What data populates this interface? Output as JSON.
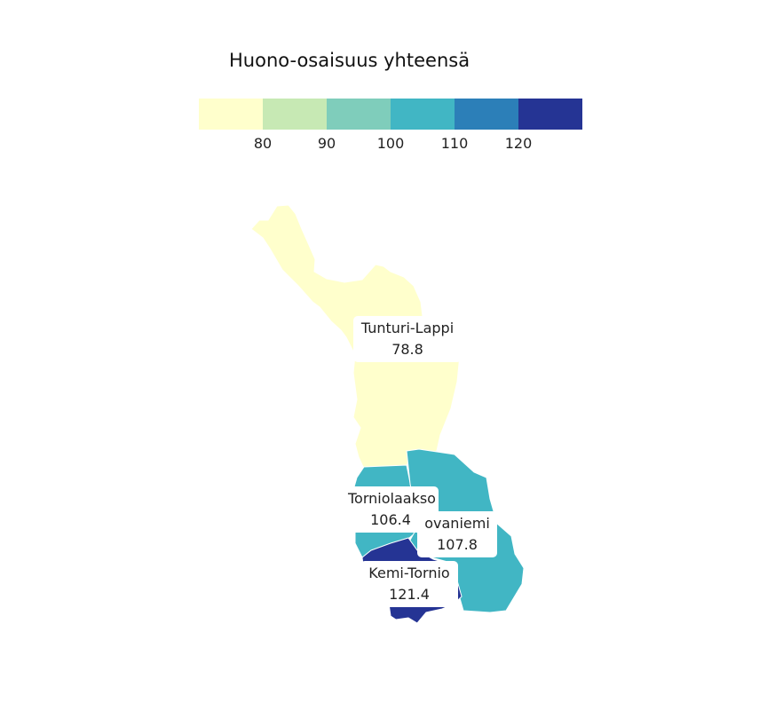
{
  "legend": {
    "title": "Huono-osaisuus yhteensä",
    "bins": [
      {
        "color": "#ffffcc"
      },
      {
        "color": "#c7e9b4"
      },
      {
        "color": "#7fcdbb"
      },
      {
        "color": "#41b6c4"
      },
      {
        "color": "#2c7fb8"
      },
      {
        "color": "#253494"
      }
    ],
    "ticks": [
      "80",
      "90",
      "100",
      "110",
      "120"
    ]
  },
  "regions": [
    {
      "name": "Tunturi-Lappi",
      "value": "78.8",
      "color": "#ffffcc"
    },
    {
      "name": "Torniolaakso",
      "value": "106.4",
      "color": "#41b6c4"
    },
    {
      "name": "Rovaniemi",
      "display_name": "ovaniemi",
      "value": "107.8",
      "color": "#41b6c4"
    },
    {
      "name": "Kemi-Tornio",
      "value": "121.4",
      "color": "#253494"
    }
  ]
}
